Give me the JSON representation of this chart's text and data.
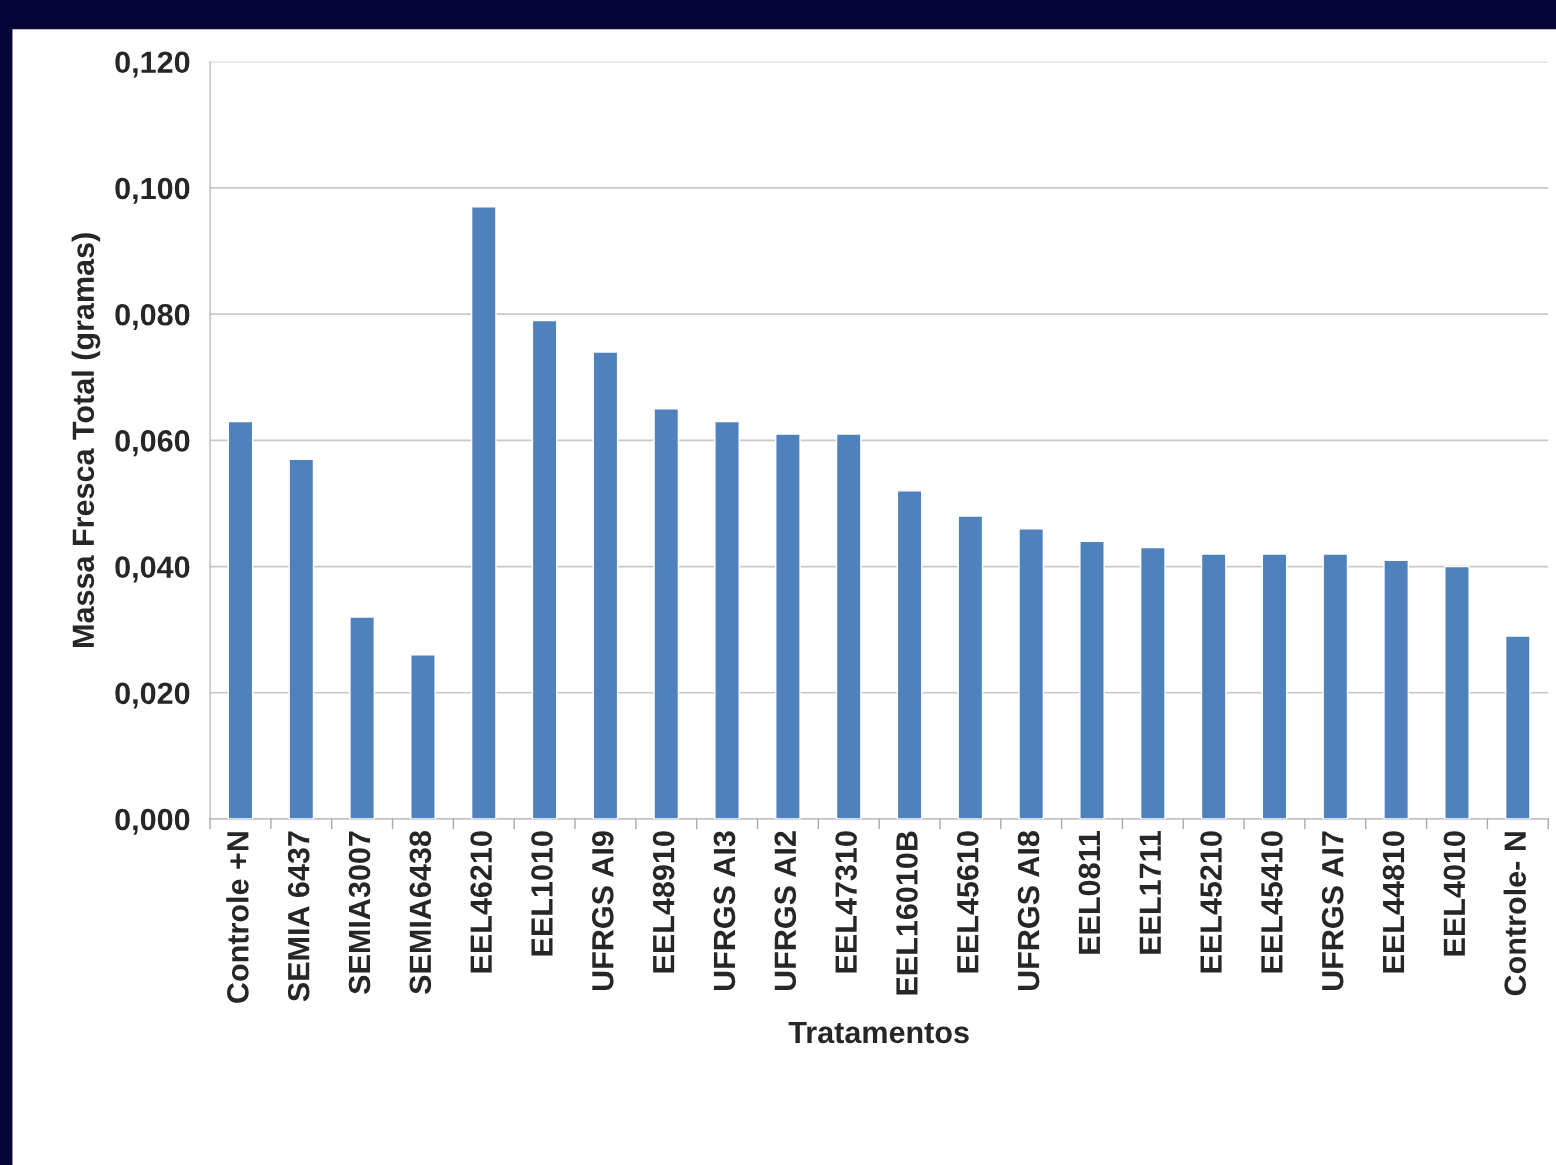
{
  "chart_data": {
    "type": "bar",
    "xlabel": "Tratamentos",
    "ylabel": "Massa Fresca Total (gramas)",
    "categories": [
      "Controle +N",
      "SEMIA 6437",
      "SEMIA3007",
      "SEMIA6438",
      "EEL46210",
      "EEL1010",
      "UFRGS AI9",
      "EEL48910",
      "UFRGS AI3",
      "UFRGS AI2",
      "EEL47310",
      "EEL16010B",
      "EEL45610",
      "UFRGS AI8",
      "EEL0811",
      "EEL1711",
      "EEL45210",
      "EEL45410",
      "UFRGS AI7",
      "EEL44810",
      "EEL4010",
      "Controle- N"
    ],
    "values": [
      0.063,
      0.057,
      0.032,
      0.026,
      0.097,
      0.079,
      0.074,
      0.065,
      0.063,
      0.061,
      0.061,
      0.052,
      0.048,
      0.046,
      0.044,
      0.043,
      0.042,
      0.042,
      0.042,
      0.041,
      0.04,
      0.029
    ],
    "color": "#4f81bd",
    "ylim": [
      0,
      0.12
    ],
    "yticks": [
      {
        "value": 0,
        "label": "0,000"
      },
      {
        "value": 0.02,
        "label": "0,020"
      },
      {
        "value": 0.04,
        "label": "0,040"
      },
      {
        "value": 0.06,
        "label": "0,060"
      },
      {
        "value": 0.08,
        "label": "0,080"
      },
      {
        "value": 0.1,
        "label": "0,100"
      },
      {
        "value": 0.12,
        "label": "0,120"
      }
    ],
    "grid": "y",
    "legend": false
  }
}
